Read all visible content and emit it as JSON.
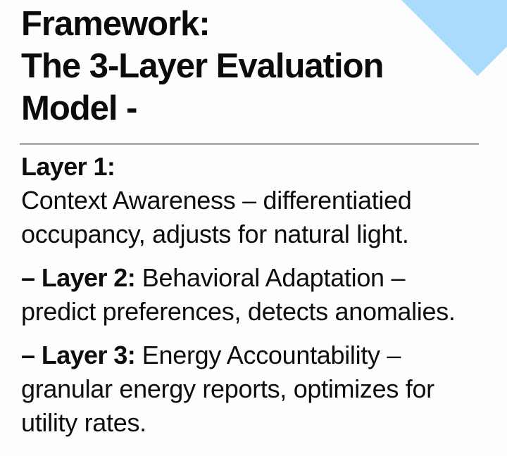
{
  "page": {
    "background_color": "#fdfdfd",
    "text_color": "#0d0d0e",
    "divider_color": "#a9aeb2",
    "accent_color": "#a9dcfa"
  },
  "title": {
    "lines": [
      "Framework:",
      "The 3-Layer Evaluation",
      "Model -"
    ]
  },
  "layers": [
    {
      "heading": "Layer 1:",
      "body_lines": [
        "Context Awareness – differentiatied",
        "occupancy, adjusts for natural light."
      ]
    },
    {
      "prefix": "– Layer 2:",
      "line1_rest": " Behavioral Adaptation –",
      "body_lines": [
        "predict preferences, detects anomalies."
      ]
    },
    {
      "prefix": "– Layer 3:",
      "line1_rest": " Energy Accountability –",
      "body_lines": [
        "granular energy reports, optimizes for",
        "utility rates."
      ]
    }
  ]
}
